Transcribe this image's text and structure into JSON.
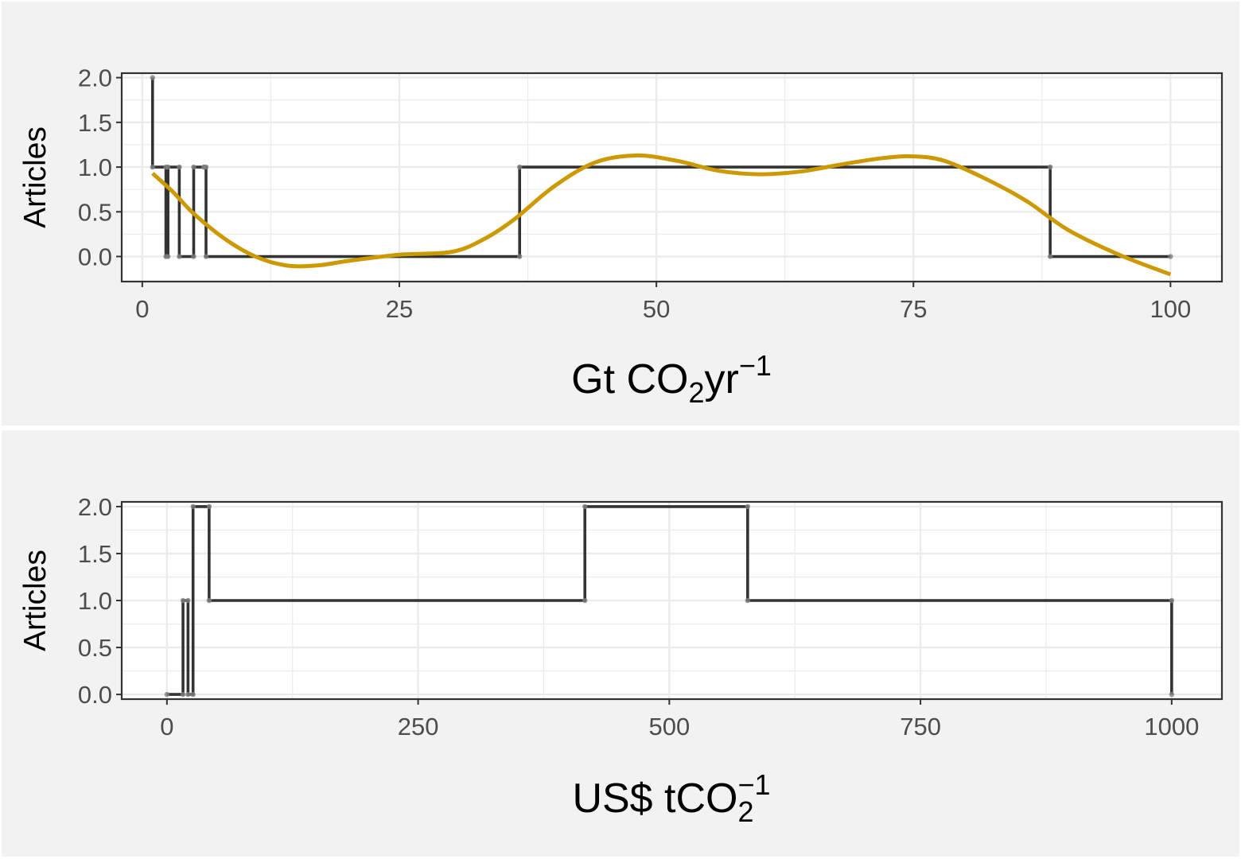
{
  "colors": {
    "panel_background": "#f2f2f2",
    "plot_background": "#ffffff",
    "grid": "#ebebeb",
    "step_line": "#333333",
    "points": "#808080",
    "smooth": "#cc9900",
    "border": "#333333"
  },
  "chart_data": [
    {
      "type": "line",
      "ylabel": "Articles",
      "xlabel": {
        "base": "Gt CO",
        "sub": "2",
        "mid": "yr",
        "sup": "−1"
      },
      "xlim": [
        -2,
        105
      ],
      "ylim": [
        -0.28,
        2.05
      ],
      "x_ticks": [
        0,
        25,
        50,
        75,
        100
      ],
      "x_tick_labels": [
        "0",
        "25",
        "50",
        "75",
        "100"
      ],
      "y_ticks": [
        0,
        0.5,
        1,
        1.5,
        2
      ],
      "y_tick_labels": [
        "0.0",
        "0.5",
        "1.0",
        "1.5",
        "2.0"
      ],
      "grid": true,
      "series": [
        {
          "style": "step",
          "x": [
            1,
            1,
            2.3,
            2.3,
            2.5,
            2.5,
            3.6,
            3.6,
            5,
            5,
            6,
            6,
            6.2,
            6.2,
            36.7,
            36.7,
            88.3,
            88.3,
            100
          ],
          "y": [
            2,
            1,
            1,
            0,
            0,
            1,
            1,
            0,
            0,
            1,
            1,
            1,
            1,
            0,
            0,
            1,
            1,
            0,
            0
          ]
        },
        {
          "style": "smooth",
          "x": [
            1,
            3,
            5,
            8,
            11,
            14,
            17,
            20,
            25,
            30,
            33,
            36,
            40,
            44,
            48,
            52,
            56,
            60,
            64,
            68,
            72,
            75,
            78,
            82,
            86,
            90,
            95,
            100
          ],
          "y": [
            0.93,
            0.72,
            0.48,
            0.2,
            0.0,
            -0.1,
            -0.1,
            -0.05,
            0.02,
            0.05,
            0.18,
            0.4,
            0.78,
            1.05,
            1.13,
            1.07,
            0.96,
            0.92,
            0.95,
            1.03,
            1.1,
            1.12,
            1.07,
            0.87,
            0.62,
            0.3,
            0.02,
            -0.2
          ]
        }
      ]
    },
    {
      "type": "line",
      "ylabel": "Articles",
      "xlabel": {
        "base": "US$ tCO",
        "sub": "2",
        "sup": "−1"
      },
      "xlim": [
        -45,
        1050
      ],
      "ylim": [
        -0.05,
        2.05
      ],
      "x_ticks": [
        0,
        250,
        500,
        750,
        1000
      ],
      "x_tick_labels": [
        "0",
        "250",
        "500",
        "750",
        "1000"
      ],
      "y_ticks": [
        0,
        0.5,
        1,
        1.5,
        2
      ],
      "y_tick_labels": [
        "0.0",
        "0.5",
        "1.0",
        "1.5",
        "2.0"
      ],
      "grid": true,
      "series": [
        {
          "style": "step",
          "x": [
            0,
            16,
            16,
            21,
            21,
            26,
            26,
            42,
            42,
            416,
            416,
            578,
            578,
            1000,
            1000
          ],
          "y": [
            0,
            0,
            1,
            1,
            0,
            0,
            2,
            2,
            1,
            1,
            2,
            2,
            1,
            1,
            0
          ]
        }
      ]
    }
  ]
}
